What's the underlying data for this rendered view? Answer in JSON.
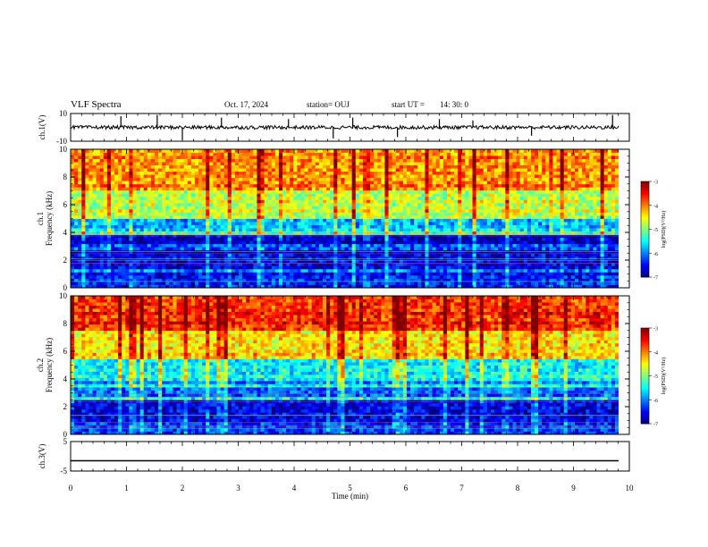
{
  "header": {
    "title": "VLF Spectra",
    "date": "Oct. 17, 2024",
    "station": "station= OUJ",
    "start_label": "start  UT  =",
    "start_time": "14: 30: 0"
  },
  "chart_data": [
    {
      "type": "line",
      "panel": "ch1-waveform",
      "ylabel": "ch.1(V)",
      "ylim": [
        -10,
        10
      ],
      "ytick_labels": [
        "10",
        "-10"
      ],
      "xlim": [
        0,
        10
      ],
      "baseline": 0,
      "color": "#000000",
      "spikes": [
        {
          "x": 0.9,
          "y": 8
        },
        {
          "x": 1.55,
          "y": 9
        },
        {
          "x": 2.0,
          "y": -9
        },
        {
          "x": 2.7,
          "y": 7
        },
        {
          "x": 3.9,
          "y": 6
        },
        {
          "x": 4.7,
          "y": -8
        },
        {
          "x": 5.05,
          "y": 7
        },
        {
          "x": 5.85,
          "y": -7
        },
        {
          "x": 6.6,
          "y": 6
        },
        {
          "x": 7.2,
          "y": 5
        },
        {
          "x": 8.25,
          "y": -6
        },
        {
          "x": 9.7,
          "y": 9
        }
      ]
    },
    {
      "type": "heatmap",
      "panel": "ch1-spectrogram",
      "ylabel": "ch.1\nFrequency  (kHz)",
      "ylim": [
        0,
        10
      ],
      "ytick_labels": [
        "0",
        "2",
        "4",
        "6",
        "8",
        "10"
      ],
      "xlim": [
        0,
        9.85
      ],
      "zlabel": "log(PSD)(V²/Hz)",
      "zlim": [
        -7,
        -3
      ],
      "zticks": [
        "-3",
        "-4",
        "-5",
        "-6",
        "-7"
      ],
      "colormap": [
        "#00007f",
        "#0000ff",
        "#0080ff",
        "#00ffff",
        "#7fff7f",
        "#ffff00",
        "#ff8000",
        "#ff0000",
        "#7f0000"
      ],
      "band_levels": [
        {
          "f": [
            0,
            1
          ],
          "level": -6.4
        },
        {
          "f": [
            1,
            2.5
          ],
          "level": -6.6
        },
        {
          "f": [
            2.5,
            3.8
          ],
          "level": -6.8
        },
        {
          "f": [
            3.8,
            5
          ],
          "level": -5.8
        },
        {
          "f": [
            5,
            7
          ],
          "level": -4.8
        },
        {
          "f": [
            7,
            10
          ],
          "level": -4.1
        }
      ]
    },
    {
      "type": "heatmap",
      "panel": "ch2-spectrogram",
      "ylabel": "ch.2\nFrequency  (kHz)",
      "ylim": [
        0,
        10
      ],
      "ytick_labels": [
        "0",
        "2",
        "4",
        "6",
        "8",
        "10"
      ],
      "xlim": [
        0,
        9.85
      ],
      "zlabel": "log(PSD)(V²/Hz)",
      "zlim": [
        -7,
        -3
      ],
      "zticks": [
        "-3",
        "-4",
        "-5",
        "-6",
        "-7"
      ],
      "band_levels": [
        {
          "f": [
            0,
            1
          ],
          "level": -6.3
        },
        {
          "f": [
            1,
            2.5
          ],
          "level": -6.6
        },
        {
          "f": [
            2.5,
            3.8
          ],
          "level": -6.1
        },
        {
          "f": [
            3.8,
            5.5
          ],
          "level": -5.5
        },
        {
          "f": [
            5.5,
            7.5
          ],
          "level": -4.4
        },
        {
          "f": [
            7.5,
            10
          ],
          "level": -3.7
        }
      ]
    },
    {
      "type": "line",
      "panel": "ch3-waveform",
      "ylabel": "ch.3(V)",
      "ylim": [
        -5,
        5
      ],
      "ytick_labels": [
        "5",
        "-5"
      ],
      "xlim": [
        0,
        10
      ],
      "value": -1.5,
      "color": "#000000"
    }
  ],
  "xaxis": {
    "label": "Time  (min)",
    "ticks": [
      "0",
      "1",
      "2",
      "3",
      "4",
      "5",
      "6",
      "7",
      "8",
      "9",
      "10"
    ],
    "range": [
      0,
      10
    ]
  }
}
